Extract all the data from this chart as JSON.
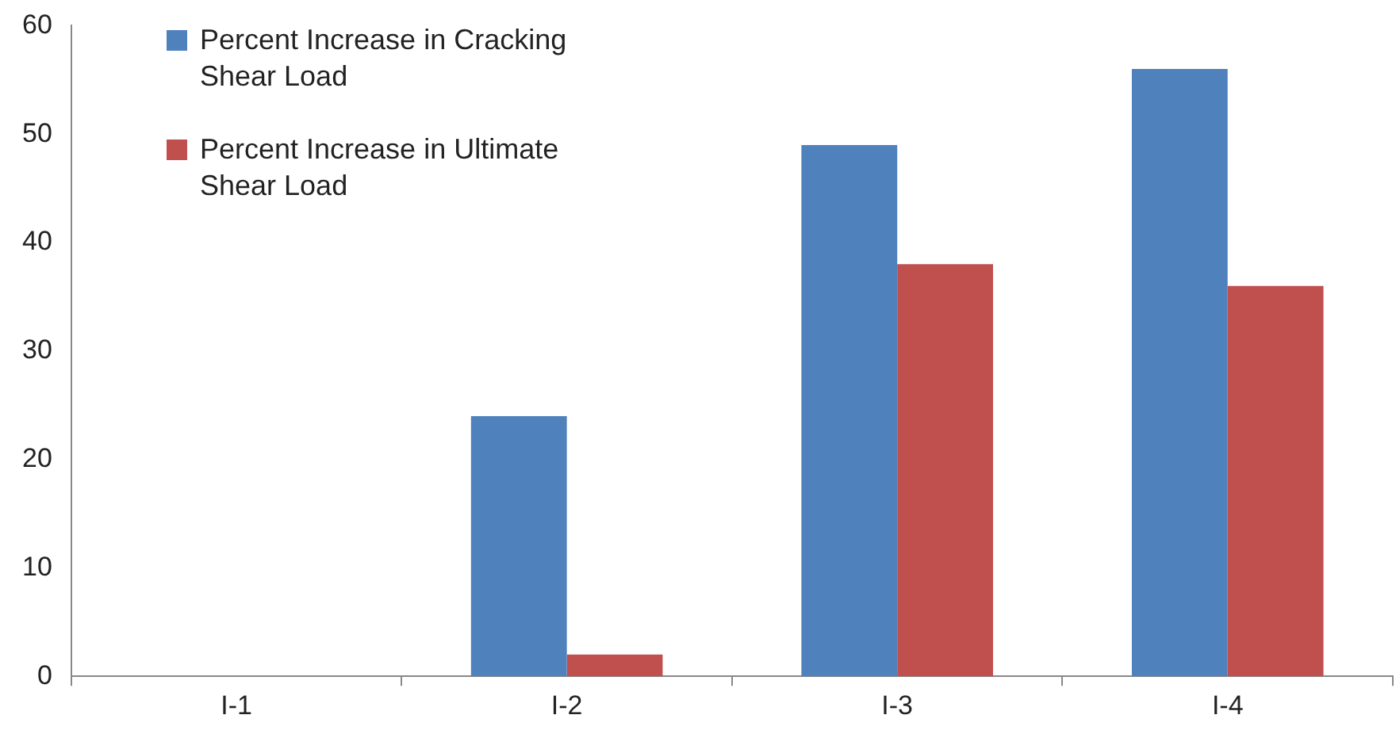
{
  "chart_data": {
    "type": "bar",
    "categories": [
      "I-1",
      "I-2",
      "I-3",
      "I-4"
    ],
    "series": [
      {
        "name": "Percent Increase in Cracking Shear Load",
        "color": "#4f81bd",
        "values": [
          0,
          24,
          49,
          56
        ]
      },
      {
        "name": "Percent Increase in Ultimate Shear Load",
        "color": "#c0504d",
        "values": [
          0,
          2,
          38,
          36
        ]
      }
    ],
    "ylim": [
      0,
      60
    ],
    "yticks": [
      0,
      10,
      20,
      30,
      40,
      50,
      60
    ],
    "grid": false,
    "legend": "top left"
  }
}
